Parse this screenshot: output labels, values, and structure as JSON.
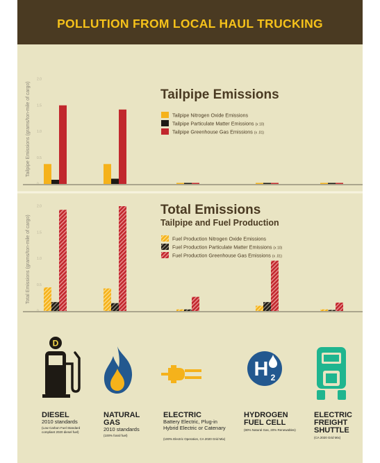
{
  "header": {
    "title": "POLLUTION FROM LOCAL HAUL TRUCKING"
  },
  "colors": {
    "nox": "#f5b21b",
    "pm": "#1e1a14",
    "ghg": "#c1272d",
    "header_bg": "#4a3a22",
    "panel_bg": "#e9e4c3",
    "icon_blue": "#23588f",
    "icon_green": "#1fb58f"
  },
  "chart_data": [
    {
      "type": "bar",
      "title": "Tailpipe Emissions",
      "ylabel": "Tailpipe Emissions (grams/ton-mile of cargo)",
      "y_ticks": [
        "2.0",
        "1.5",
        "1.0",
        "0.5",
        "0"
      ],
      "ylim": [
        0,
        2.0
      ],
      "categories": [
        "Diesel",
        "Natural Gas",
        "Electric",
        "Hydrogen Fuel Cell",
        "Electric Freight Shuttle"
      ],
      "series": [
        {
          "name": "Tailpipe Nitrogen Oxide Emissions",
          "unit_note": "",
          "values": [
            0.38,
            0.38,
            0.02,
            0.02,
            0.02
          ]
        },
        {
          "name": "Tailpipe Particulate Matter Emissions",
          "unit_note": "(x 10)",
          "values": [
            0.08,
            0.1,
            0.02,
            0.02,
            0.02
          ]
        },
        {
          "name": "Tailpipe Greenhouse Gas Emissions",
          "unit_note": "(x .01)",
          "values": [
            1.5,
            1.42,
            0.02,
            0.02,
            0.02
          ]
        }
      ],
      "legend": "right",
      "grid": false
    },
    {
      "type": "bar",
      "title": "Total Emissions",
      "subtitle": "Tailpipe and Fuel Production",
      "ylabel": "Total Emissions (grams/ton-mile of cargo)",
      "y_ticks": [
        "2.0",
        "1.5",
        "1.0",
        "0.5",
        "0"
      ],
      "ylim": [
        0,
        2.0
      ],
      "categories": [
        "Diesel",
        "Natural Gas",
        "Electric",
        "Hydrogen Fuel Cell",
        "Electric Freight Shuttle"
      ],
      "series": [
        {
          "name": "Fuel Production Nitrogen Oxide Emissions",
          "unit_note": "",
          "values": [
            0.45,
            0.43,
            0.03,
            0.1,
            0.03
          ]
        },
        {
          "name": "Fuel Production Particulate Matter Emissions",
          "unit_note": "(x 10)",
          "values": [
            0.17,
            0.15,
            0.03,
            0.17,
            0.02
          ]
        },
        {
          "name": "Fuel Production Greenhouse Gas Emissions",
          "unit_note": "(x .01)",
          "values": [
            1.93,
            2.0,
            0.27,
            0.96,
            0.16
          ]
        }
      ],
      "legend": "right",
      "grid": false
    }
  ],
  "vehicles": [
    {
      "name1": "DIESEL",
      "name2": "",
      "name3": "",
      "desc": "2010 standards",
      "note": "(Low Carbon Fuel Standard compliant 2020 diesel fuel)",
      "icon": "fuel-pump-icon",
      "badge": "D"
    },
    {
      "name1": "NATURAL",
      "name2": "GAS",
      "name3": "",
      "desc": "2010 standards",
      "note": "(100% fossil fuel)",
      "icon": "flame-icon"
    },
    {
      "name1": "ELECTRIC",
      "name2": "",
      "name3": "",
      "desc": "Battery Electric, Plug-in Hybrid Electric or Catenary",
      "note": "(100% Electric Operation, CA 2020 Grid Mix)",
      "icon": "electric-plug-icon"
    },
    {
      "name1": "HYDROGEN",
      "name2": "FUEL CELL",
      "name3": "",
      "desc": "",
      "note": "(80% Natural Gas, 20% Renewables)",
      "icon": "hydrogen-icon",
      "badge": "H",
      "badge_sub": "2"
    },
    {
      "name1": "ELECTRIC",
      "name2": "FREIGHT",
      "name3": "SHUTTLE",
      "desc": "",
      "note": "(CA 2020 Grid Mix)",
      "icon": "freight-shuttle-icon"
    }
  ]
}
